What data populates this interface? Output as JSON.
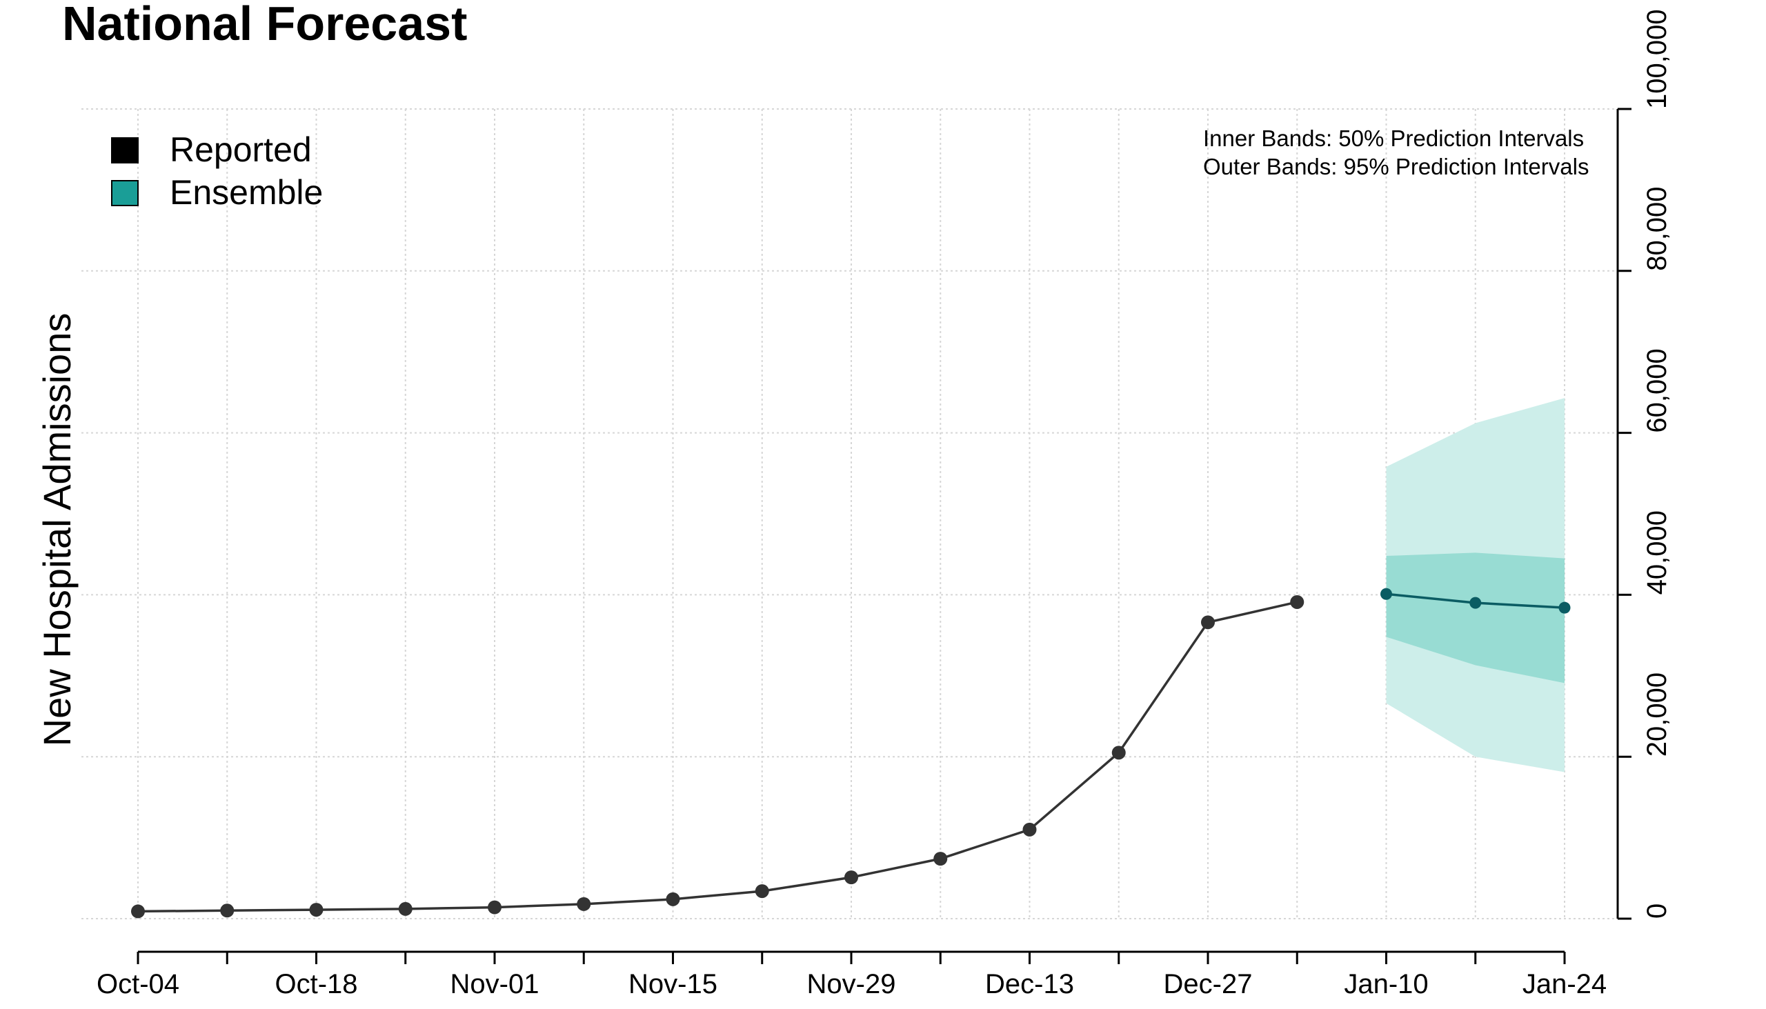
{
  "chart_data": {
    "type": "line",
    "title": "National Forecast",
    "ylabel": "New Hospital Admissions",
    "xlabel": "",
    "ylim": [
      0,
      100000
    ],
    "y_ticks": [
      0,
      20000,
      40000,
      60000,
      80000,
      100000
    ],
    "y_tick_labels": [
      "0",
      "20,000",
      "40,000",
      "60,000",
      "80,000",
      "100,000"
    ],
    "x_tick_labels": [
      "Oct-04",
      "Oct-18",
      "Nov-01",
      "Nov-15",
      "Nov-29",
      "Dec-13",
      "Dec-27",
      "Jan-10",
      "Jan-24"
    ],
    "x_tick_count": 17,
    "grid": true,
    "legend_position": "top-left",
    "legend": [
      {
        "label": "Reported",
        "color": "#000000"
      },
      {
        "label": "Ensemble",
        "color": "#1a9e97"
      }
    ],
    "annotations": [
      "Inner Bands: 50% Prediction Intervals",
      "Outer Bands: 95% Prediction Intervals"
    ],
    "series": [
      {
        "name": "Reported",
        "color": "#333333",
        "x": [
          "Oct-04",
          "Oct-11",
          "Oct-18",
          "Oct-25",
          "Nov-01",
          "Nov-08",
          "Nov-15",
          "Nov-22",
          "Nov-29",
          "Dec-06",
          "Dec-13",
          "Dec-20",
          "Dec-27",
          "Jan-03"
        ],
        "values": [
          900,
          1000,
          1100,
          1200,
          1400,
          1800,
          2400,
          3400,
          5100,
          7400,
          11000,
          20500,
          36600,
          39100
        ]
      },
      {
        "name": "Ensemble",
        "color": "#0b5c63",
        "x": [
          "Jan-10",
          "Jan-17",
          "Jan-24"
        ],
        "values": [
          40100,
          39000,
          38400
        ],
        "pi50_lower": [
          34800,
          31300,
          29100
        ],
        "pi50_upper": [
          44800,
          45200,
          44500
        ],
        "pi95_lower": [
          26600,
          20000,
          18100
        ],
        "pi95_upper": [
          55800,
          61200,
          64300
        ]
      }
    ],
    "colors": {
      "band_outer": "#cdeeea",
      "band_inner": "#98dcd3",
      "grid": "#d6d6d6"
    }
  }
}
